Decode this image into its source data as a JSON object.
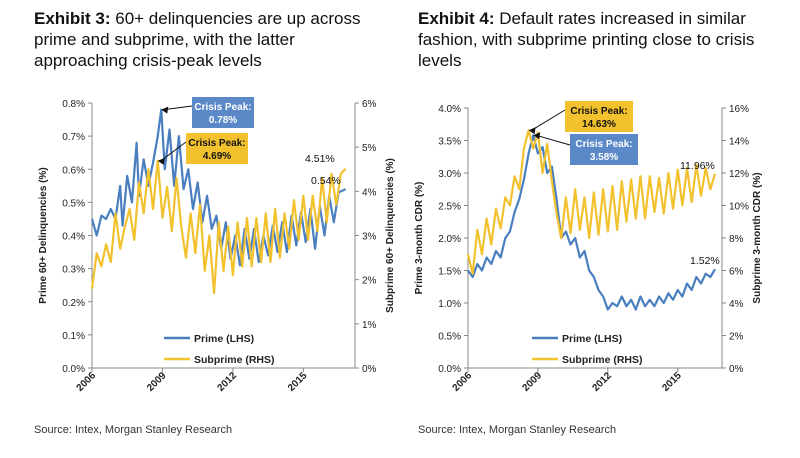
{
  "colors": {
    "prime": "#4a7fbf",
    "subprime": "#f2c12e",
    "callout_prime": "#5b88c7",
    "callout_subprime": "#f2c12e"
  },
  "exhibit3": {
    "label": "Exhibit 3:",
    "title": "60+ delinquencies are up across prime and subprime, with the latter approaching crisis-peak levels",
    "source": "Source: Intex, Morgan Stanley Research"
  },
  "exhibit4": {
    "label": "Exhibit 4:",
    "title": "Default rates increased in similar fashion, with subprime printing close to crisis levels",
    "source": "Source: Intex, Morgan Stanley Research"
  },
  "chart_data": [
    {
      "type": "line",
      "id": "exhibit3",
      "ylabel_left": "Prime 60+ Delinquencies (%)",
      "ylabel_right": "Subprime 60+ Delinquencies (%)",
      "xlim": [
        2006,
        2017.2
      ],
      "x_ticks": [
        "2006",
        "2009",
        "2012",
        "2015"
      ],
      "x_tick_values": [
        2006,
        2009,
        2012,
        2015
      ],
      "ylim_left": [
        0,
        0.8
      ],
      "y_ticks_left": [
        "0.0%",
        "0.1%",
        "0.2%",
        "0.3%",
        "0.4%",
        "0.5%",
        "0.6%",
        "0.7%",
        "0.8%"
      ],
      "ylim_right": [
        0,
        6
      ],
      "y_ticks_right": [
        "0%",
        "1%",
        "2%",
        "3%",
        "4%",
        "5%",
        "6%"
      ],
      "series": [
        {
          "name": "Prime (LHS)",
          "axis": "left",
          "color": "prime",
          "points": [
            [
              2006.0,
              0.45
            ],
            [
              2006.2,
              0.4
            ],
            [
              2006.4,
              0.46
            ],
            [
              2006.6,
              0.45
            ],
            [
              2006.8,
              0.48
            ],
            [
              2007.0,
              0.45
            ],
            [
              2007.2,
              0.55
            ],
            [
              2007.3,
              0.43
            ],
            [
              2007.5,
              0.58
            ],
            [
              2007.7,
              0.5
            ],
            [
              2007.9,
              0.68
            ],
            [
              2008.0,
              0.52
            ],
            [
              2008.2,
              0.63
            ],
            [
              2008.4,
              0.55
            ],
            [
              2008.6,
              0.62
            ],
            [
              2008.8,
              0.7
            ],
            [
              2008.95,
              0.78
            ],
            [
              2009.1,
              0.6
            ],
            [
              2009.3,
              0.72
            ],
            [
              2009.5,
              0.55
            ],
            [
              2009.7,
              0.7
            ],
            [
              2009.9,
              0.54
            ],
            [
              2010.1,
              0.6
            ],
            [
              2010.3,
              0.48
            ],
            [
              2010.5,
              0.56
            ],
            [
              2010.7,
              0.44
            ],
            [
              2010.9,
              0.52
            ],
            [
              2011.1,
              0.42
            ],
            [
              2011.3,
              0.46
            ],
            [
              2011.5,
              0.36
            ],
            [
              2011.7,
              0.44
            ],
            [
              2011.9,
              0.33
            ],
            [
              2012.1,
              0.4
            ],
            [
              2012.3,
              0.31
            ],
            [
              2012.5,
              0.42
            ],
            [
              2012.7,
              0.33
            ],
            [
              2012.9,
              0.42
            ],
            [
              2013.1,
              0.32
            ],
            [
              2013.3,
              0.4
            ],
            [
              2013.5,
              0.34
            ],
            [
              2013.7,
              0.43
            ],
            [
              2013.9,
              0.35
            ],
            [
              2014.1,
              0.44
            ],
            [
              2014.3,
              0.35
            ],
            [
              2014.5,
              0.46
            ],
            [
              2014.7,
              0.37
            ],
            [
              2014.9,
              0.47
            ],
            [
              2015.1,
              0.38
            ],
            [
              2015.3,
              0.48
            ],
            [
              2015.5,
              0.36
            ],
            [
              2015.7,
              0.49
            ],
            [
              2015.9,
              0.4
            ],
            [
              2016.1,
              0.52
            ],
            [
              2016.3,
              0.44
            ],
            [
              2016.5,
              0.53
            ],
            [
              2016.8,
              0.54
            ]
          ]
        },
        {
          "name": "Subprime (RHS)",
          "axis": "right",
          "color": "subprime",
          "points": [
            [
              2006.0,
              1.8
            ],
            [
              2006.2,
              2.6
            ],
            [
              2006.4,
              2.3
            ],
            [
              2006.6,
              2.8
            ],
            [
              2006.8,
              2.4
            ],
            [
              2007.0,
              3.5
            ],
            [
              2007.2,
              2.7
            ],
            [
              2007.4,
              3.2
            ],
            [
              2007.6,
              3.6
            ],
            [
              2007.8,
              2.9
            ],
            [
              2008.0,
              4.2
            ],
            [
              2008.2,
              3.5
            ],
            [
              2008.4,
              4.5
            ],
            [
              2008.6,
              3.6
            ],
            [
              2008.8,
              4.69
            ],
            [
              2009.0,
              3.4
            ],
            [
              2009.2,
              4.1
            ],
            [
              2009.4,
              3.1
            ],
            [
              2009.6,
              4.3
            ],
            [
              2009.8,
              3.2
            ],
            [
              2010.0,
              2.5
            ],
            [
              2010.2,
              3.5
            ],
            [
              2010.4,
              2.6
            ],
            [
              2010.6,
              3.7
            ],
            [
              2010.8,
              2.2
            ],
            [
              2011.0,
              3.0
            ],
            [
              2011.2,
              1.7
            ],
            [
              2011.4,
              3.3
            ],
            [
              2011.6,
              2.2
            ],
            [
              2011.8,
              3.2
            ],
            [
              2012.0,
              2.1
            ],
            [
              2012.2,
              3.3
            ],
            [
              2012.4,
              2.3
            ],
            [
              2012.6,
              3.4
            ],
            [
              2012.8,
              2.3
            ],
            [
              2013.0,
              3.4
            ],
            [
              2013.2,
              2.4
            ],
            [
              2013.4,
              3.5
            ],
            [
              2013.6,
              2.4
            ],
            [
              2013.8,
              3.6
            ],
            [
              2014.0,
              2.5
            ],
            [
              2014.2,
              3.5
            ],
            [
              2014.4,
              2.7
            ],
            [
              2014.6,
              3.8
            ],
            [
              2014.8,
              2.9
            ],
            [
              2015.0,
              3.9
            ],
            [
              2015.2,
              2.9
            ],
            [
              2015.4,
              3.9
            ],
            [
              2015.6,
              3.1
            ],
            [
              2015.8,
              4.3
            ],
            [
              2016.0,
              3.3
            ],
            [
              2016.2,
              4.4
            ],
            [
              2016.4,
              3.7
            ],
            [
              2016.6,
              4.4
            ],
            [
              2016.8,
              4.51
            ]
          ]
        }
      ],
      "annotations": [
        {
          "text": "Crisis Peak:\n0.78%",
          "series": "prime"
        },
        {
          "text": "Crisis Peak:\n4.69%",
          "series": "subprime"
        },
        {
          "text": "4.51%",
          "series": "subprime"
        },
        {
          "text": "0.54%",
          "series": "prime"
        }
      ],
      "legend": [
        "Prime (LHS)",
        "Subprime (RHS)"
      ],
      "legend_position": "bottom-center"
    },
    {
      "type": "line",
      "id": "exhibit4",
      "ylabel_left": "Prime 3-month CDR (%)",
      "ylabel_right": "Subprime 3-month CDR (%)",
      "xlim": [
        2006,
        2016.9
      ],
      "x_ticks": [
        "2006",
        "2009",
        "2012",
        "2015"
      ],
      "x_tick_values": [
        2006,
        2009,
        2012,
        2015
      ],
      "ylim_left": [
        0,
        4
      ],
      "y_ticks_left": [
        "0.0%",
        "0.5%",
        "1.0%",
        "1.5%",
        "2.0%",
        "2.5%",
        "3.0%",
        "3.5%",
        "4.0%"
      ],
      "ylim_right": [
        0,
        16
      ],
      "y_ticks_right": [
        "0%",
        "2%",
        "4%",
        "6%",
        "8%",
        "10%",
        "12%",
        "14%",
        "16%"
      ],
      "series": [
        {
          "name": "Prime (LHS)",
          "axis": "left",
          "color": "prime",
          "points": [
            [
              2006.0,
              1.5
            ],
            [
              2006.2,
              1.4
            ],
            [
              2006.4,
              1.6
            ],
            [
              2006.6,
              1.5
            ],
            [
              2006.8,
              1.7
            ],
            [
              2007.0,
              1.6
            ],
            [
              2007.2,
              1.8
            ],
            [
              2007.4,
              1.7
            ],
            [
              2007.6,
              2.0
            ],
            [
              2007.8,
              2.1
            ],
            [
              2008.0,
              2.4
            ],
            [
              2008.2,
              2.6
            ],
            [
              2008.4,
              2.9
            ],
            [
              2008.6,
              3.3
            ],
            [
              2008.8,
              3.58
            ],
            [
              2009.0,
              3.3
            ],
            [
              2009.2,
              3.4
            ],
            [
              2009.4,
              3.0
            ],
            [
              2009.6,
              3.1
            ],
            [
              2009.8,
              2.6
            ],
            [
              2010.0,
              2.0
            ],
            [
              2010.2,
              2.1
            ],
            [
              2010.4,
              1.9
            ],
            [
              2010.6,
              2.0
            ],
            [
              2010.8,
              1.7
            ],
            [
              2011.0,
              1.8
            ],
            [
              2011.2,
              1.5
            ],
            [
              2011.4,
              1.4
            ],
            [
              2011.6,
              1.2
            ],
            [
              2011.8,
              1.1
            ],
            [
              2012.0,
              0.9
            ],
            [
              2012.2,
              1.0
            ],
            [
              2012.4,
              0.95
            ],
            [
              2012.6,
              1.1
            ],
            [
              2012.8,
              0.95
            ],
            [
              2013.0,
              1.05
            ],
            [
              2013.2,
              0.9
            ],
            [
              2013.4,
              1.1
            ],
            [
              2013.6,
              0.95
            ],
            [
              2013.8,
              1.05
            ],
            [
              2014.0,
              0.95
            ],
            [
              2014.2,
              1.1
            ],
            [
              2014.4,
              1.0
            ],
            [
              2014.6,
              1.15
            ],
            [
              2014.8,
              1.05
            ],
            [
              2015.0,
              1.2
            ],
            [
              2015.2,
              1.1
            ],
            [
              2015.4,
              1.3
            ],
            [
              2015.6,
              1.2
            ],
            [
              2015.8,
              1.4
            ],
            [
              2016.0,
              1.3
            ],
            [
              2016.2,
              1.45
            ],
            [
              2016.4,
              1.4
            ],
            [
              2016.6,
              1.52
            ]
          ]
        },
        {
          "name": "Subprime (RHS)",
          "axis": "right",
          "color": "subprime",
          "points": [
            [
              2006.0,
              7.0
            ],
            [
              2006.2,
              5.8
            ],
            [
              2006.4,
              8.5
            ],
            [
              2006.6,
              7.0
            ],
            [
              2006.8,
              9.2
            ],
            [
              2007.0,
              7.6
            ],
            [
              2007.2,
              9.8
            ],
            [
              2007.4,
              8.6
            ],
            [
              2007.6,
              10.5
            ],
            [
              2007.8,
              10.0
            ],
            [
              2008.0,
              11.8
            ],
            [
              2008.2,
              11.0
            ],
            [
              2008.4,
              13.5
            ],
            [
              2008.6,
              14.63
            ],
            [
              2008.8,
              13.5
            ],
            [
              2009.0,
              14.5
            ],
            [
              2009.2,
              12.0
            ],
            [
              2009.4,
              13.8
            ],
            [
              2009.6,
              11.5
            ],
            [
              2009.8,
              9.5
            ],
            [
              2010.0,
              8.0
            ],
            [
              2010.2,
              10.5
            ],
            [
              2010.4,
              8.3
            ],
            [
              2010.6,
              11.0
            ],
            [
              2010.8,
              8.5
            ],
            [
              2011.0,
              10.5
            ],
            [
              2011.2,
              8.0
            ],
            [
              2011.4,
              10.8
            ],
            [
              2011.6,
              8.2
            ],
            [
              2011.8,
              11.0
            ],
            [
              2012.0,
              8.4
            ],
            [
              2012.2,
              11.2
            ],
            [
              2012.4,
              8.5
            ],
            [
              2012.6,
              11.5
            ],
            [
              2012.8,
              9.0
            ],
            [
              2013.0,
              11.6
            ],
            [
              2013.2,
              9.2
            ],
            [
              2013.4,
              11.8
            ],
            [
              2013.6,
              9.2
            ],
            [
              2013.8,
              11.8
            ],
            [
              2014.0,
              9.6
            ],
            [
              2014.2,
              11.7
            ],
            [
              2014.4,
              9.5
            ],
            [
              2014.6,
              12.0
            ],
            [
              2014.8,
              9.8
            ],
            [
              2015.0,
              12.2
            ],
            [
              2015.2,
              10.0
            ],
            [
              2015.4,
              12.3
            ],
            [
              2015.6,
              10.2
            ],
            [
              2015.8,
              12.5
            ],
            [
              2016.0,
              10.6
            ],
            [
              2016.2,
              12.3
            ],
            [
              2016.4,
              11.0
            ],
            [
              2016.6,
              11.96
            ]
          ]
        }
      ],
      "annotations": [
        {
          "text": "Crisis Peak:\n14.63%",
          "series": "subprime"
        },
        {
          "text": "Crisis Peak:\n3.58%",
          "series": "prime"
        },
        {
          "text": "11.96%",
          "series": "subprime"
        },
        {
          "text": "1.52%",
          "series": "prime"
        }
      ],
      "legend": [
        "Prime (LHS)",
        "Subprime (RHS)"
      ],
      "legend_position": "bottom-center"
    }
  ]
}
